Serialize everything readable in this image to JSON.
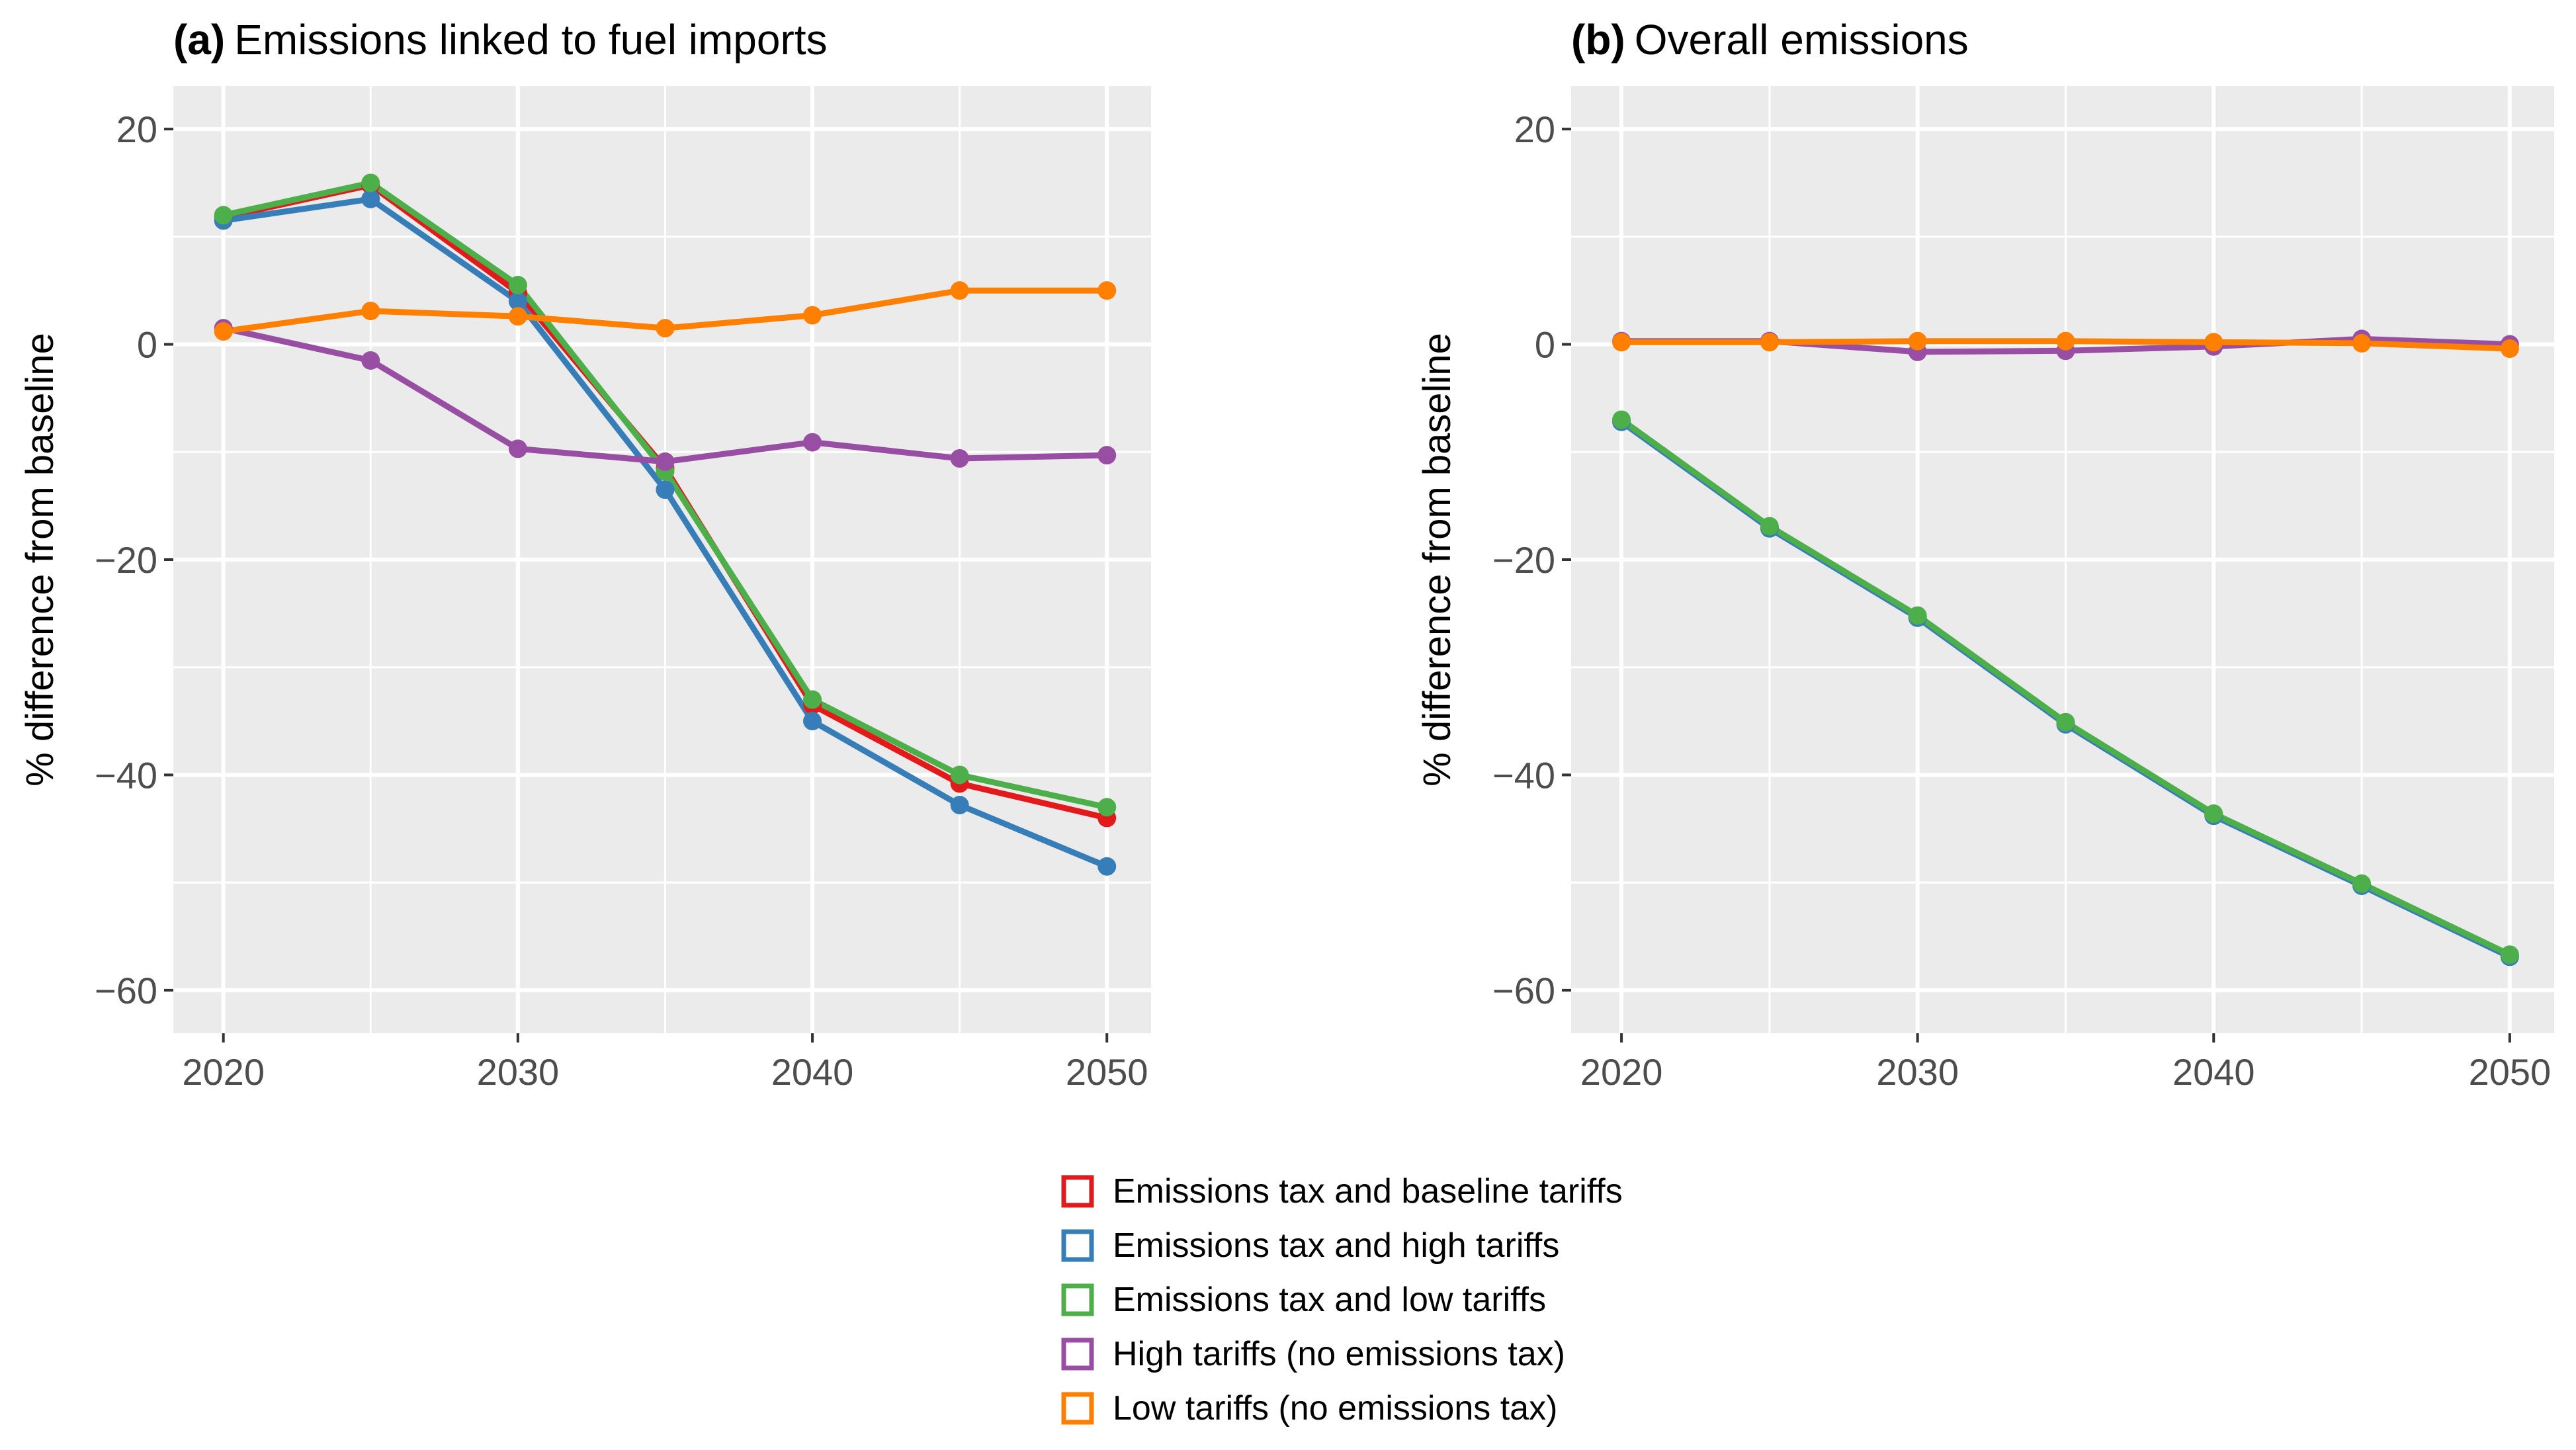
{
  "chart_data": [
    {
      "type": "line",
      "panel_label": "(a)",
      "title": "Emissions linked to fuel imports",
      "xlabel": "",
      "ylabel": "% difference from baseline",
      "x": [
        2020,
        2025,
        2030,
        2035,
        2040,
        2045,
        2050
      ],
      "xlim": [
        2018.3,
        2051.5
      ],
      "ylim": [
        -64,
        24
      ],
      "xticks": [
        2020,
        2030,
        2040,
        2050
      ],
      "yticks": [
        20,
        0,
        -20,
        -40,
        -60
      ],
      "ytick_labels": [
        "20",
        "0",
        "−20",
        "−40",
        "−60"
      ],
      "grid": true,
      "series": [
        {
          "name": "Emissions tax and baseline tariffs",
          "values": [
            11.8,
            14.8,
            4.8,
            -11.5,
            -33.5,
            -40.8,
            -44
          ]
        },
        {
          "name": "Emissions tax and high tariffs",
          "values": [
            11.5,
            13.5,
            4,
            -13.5,
            -35,
            -42.8,
            -48.5
          ]
        },
        {
          "name": "Emissions tax and low tariffs",
          "values": [
            12,
            15,
            5.5,
            -11.8,
            -33,
            -40,
            -43
          ]
        },
        {
          "name": "High tariffs (no emissions tax)",
          "values": [
            1.5,
            -1.5,
            -9.7,
            -10.9,
            -9.1,
            -10.6,
            -10.3
          ]
        },
        {
          "name": "Low tariffs (no emissions tax)",
          "values": [
            1.2,
            3.1,
            2.6,
            1.5,
            2.7,
            5,
            5
          ]
        }
      ]
    },
    {
      "type": "line",
      "panel_label": "(b)",
      "title": "Overall emissions",
      "xlabel": "",
      "ylabel": "% difference from baseline",
      "x": [
        2020,
        2025,
        2030,
        2035,
        2040,
        2045,
        2050
      ],
      "xlim": [
        2018.3,
        2051.5
      ],
      "ylim": [
        -64,
        24
      ],
      "xticks": [
        2020,
        2030,
        2040,
        2050
      ],
      "yticks": [
        20,
        0,
        -20,
        -40,
        -60
      ],
      "ytick_labels": [
        "20",
        "0",
        "−20",
        "−40",
        "−60"
      ],
      "grid": true,
      "series": [
        {
          "name": "Emissions tax and baseline tariffs",
          "values": [
            -7.1,
            -17,
            -25.3,
            -35.2,
            -43.7,
            -50.2,
            -56.8
          ]
        },
        {
          "name": "Emissions tax and high tariffs",
          "values": [
            -7.2,
            -17.1,
            -25.4,
            -35.3,
            -43.8,
            -50.3,
            -56.9
          ]
        },
        {
          "name": "Emissions tax and low tariffs",
          "values": [
            -7,
            -16.9,
            -25.2,
            -35.1,
            -43.6,
            -50.1,
            -56.7
          ]
        },
        {
          "name": "High tariffs (no emissions tax)",
          "values": [
            0.3,
            0.3,
            -0.7,
            -0.6,
            -0.2,
            0.5,
            0
          ]
        },
        {
          "name": "Low tariffs (no emissions tax)",
          "values": [
            0.2,
            0.2,
            0.3,
            0.3,
            0.2,
            0.1,
            -0.4
          ]
        }
      ]
    }
  ],
  "colors": {
    "Emissions tax and baseline tariffs": "#e31a1c",
    "Emissions tax and high tariffs": "#377eb8",
    "Emissions tax and low tariffs": "#4daf4a",
    "High tariffs (no emissions tax)": "#984ea3",
    "Low tariffs (no emissions tax)": "#ff7f00"
  },
  "panel_background": "#ebebeb",
  "grid_color": "#ffffff",
  "legend": {
    "position": "bottom-center",
    "entries": [
      "Emissions tax and baseline tariffs",
      "Emissions tax and high tariffs",
      "Emissions tax and low tariffs",
      "High tariffs (no emissions tax)",
      "Low tariffs (no emissions tax)"
    ]
  }
}
